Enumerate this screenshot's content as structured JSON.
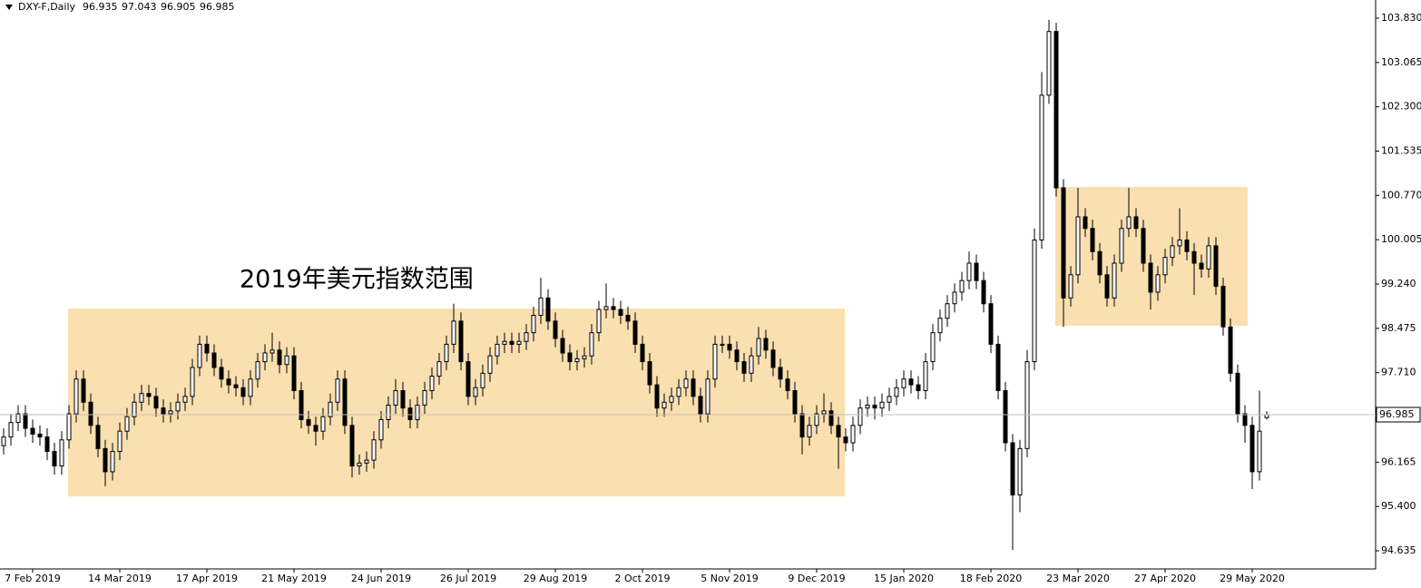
{
  "chart_data": {
    "type": "candlestick",
    "title": "DXY-F,Daily",
    "annotation": "2019年美元指数范围",
    "ylim": [
      94.322,
      104.143
    ],
    "yticks": [
      94.635,
      {
        "value": 95.4,
        "label": "95.400"
      },
      96.165,
      {
        "value": 97.71,
        "label": "97.710"
      },
      98.475,
      {
        "value": 99.24,
        "label": "99.240"
      },
      100.005,
      {
        "value": 100.77,
        "label": "100.770"
      },
      101.535,
      {
        "value": 102.3,
        "label": "102.300"
      },
      103.065,
      {
        "value": 103.83,
        "label": "103.830"
      }
    ],
    "last_price": 96.985,
    "up_color": "#ffffff",
    "down_color": "#000000",
    "outline_color": "#000000",
    "categories": [
      null,
      null,
      null,
      null,
      "7 Feb 2019",
      null,
      null,
      null,
      null,
      null,
      null,
      null,
      null,
      null,
      null,
      null,
      "14 Mar 2019",
      null,
      null,
      null,
      null,
      null,
      null,
      null,
      null,
      null,
      null,
      null,
      "17 Apr 2019",
      null,
      null,
      null,
      null,
      null,
      null,
      null,
      null,
      null,
      null,
      null,
      "21 May 2019",
      null,
      null,
      null,
      null,
      null,
      null,
      null,
      null,
      null,
      null,
      null,
      "24 Jun 2019",
      null,
      null,
      null,
      null,
      null,
      null,
      null,
      null,
      null,
      null,
      null,
      "26 Jul 2019",
      null,
      null,
      null,
      null,
      null,
      null,
      null,
      null,
      null,
      null,
      null,
      "29 Aug 2019",
      null,
      null,
      null,
      null,
      null,
      null,
      null,
      null,
      null,
      null,
      null,
      "2 Oct 2019",
      null,
      null,
      null,
      null,
      null,
      null,
      null,
      null,
      null,
      null,
      null,
      "5 Nov 2019",
      null,
      null,
      null,
      null,
      null,
      null,
      null,
      null,
      null,
      null,
      null,
      "9 Dec 2019",
      null,
      null,
      null,
      null,
      null,
      null,
      null,
      null,
      null,
      null,
      null,
      "15 Jan 2020",
      null,
      null,
      null,
      null,
      null,
      null,
      null,
      null,
      null,
      null,
      null,
      "18 Feb 2020",
      null,
      null,
      null,
      null,
      null,
      null,
      null,
      null,
      null,
      null,
      null,
      "23 Mar 2020",
      null,
      null,
      null,
      null,
      null,
      null,
      null,
      null,
      null,
      null,
      null,
      "27 Apr 2020",
      null,
      null,
      null,
      null,
      null,
      null,
      null,
      null,
      null,
      null,
      null,
      "29 May 2020",
      null,
      null
    ],
    "candles": [
      [
        96.45,
        96.75,
        96.3,
        96.6
      ],
      [
        96.6,
        97.0,
        96.45,
        96.85
      ],
      [
        96.85,
        97.15,
        96.7,
        97.0
      ],
      [
        97.0,
        97.15,
        96.6,
        96.75
      ],
      [
        96.75,
        96.9,
        96.5,
        96.65
      ],
      [
        96.65,
        96.8,
        96.45,
        96.6
      ],
      [
        96.6,
        96.75,
        96.2,
        96.35
      ],
      [
        96.35,
        96.5,
        95.95,
        96.1
      ],
      [
        96.1,
        96.7,
        95.95,
        96.55
      ],
      [
        96.55,
        97.15,
        96.4,
        97.0
      ],
      [
        97.0,
        97.75,
        96.85,
        97.6
      ],
      [
        97.6,
        97.75,
        97.05,
        97.2
      ],
      [
        97.2,
        97.35,
        96.65,
        96.8
      ],
      [
        96.8,
        96.95,
        96.25,
        96.4
      ],
      [
        96.4,
        96.55,
        95.75,
        96.0
      ],
      [
        96.0,
        96.5,
        95.85,
        96.35
      ],
      [
        96.35,
        96.85,
        96.2,
        96.7
      ],
      [
        96.7,
        97.1,
        96.55,
        96.95
      ],
      [
        96.95,
        97.35,
        96.8,
        97.2
      ],
      [
        97.2,
        97.5,
        97.05,
        97.35
      ],
      [
        97.35,
        97.5,
        97.15,
        97.3
      ],
      [
        97.3,
        97.45,
        96.95,
        97.1
      ],
      [
        97.1,
        97.25,
        96.85,
        97.0
      ],
      [
        97.0,
        97.2,
        96.85,
        97.05
      ],
      [
        97.05,
        97.35,
        96.9,
        97.2
      ],
      [
        97.2,
        97.45,
        97.05,
        97.3
      ],
      [
        97.3,
        97.95,
        97.15,
        97.8
      ],
      [
        97.8,
        98.35,
        97.65,
        98.2
      ],
      [
        98.2,
        98.35,
        97.9,
        98.05
      ],
      [
        98.05,
        98.2,
        97.65,
        97.8
      ],
      [
        97.8,
        97.95,
        97.45,
        97.6
      ],
      [
        97.6,
        97.75,
        97.35,
        97.5
      ],
      [
        97.5,
        97.65,
        97.3,
        97.45
      ],
      [
        97.45,
        97.6,
        97.15,
        97.3
      ],
      [
        97.3,
        97.75,
        97.15,
        97.6
      ],
      [
        97.6,
        98.05,
        97.45,
        97.9
      ],
      [
        97.9,
        98.2,
        97.75,
        98.05
      ],
      [
        98.05,
        98.4,
        97.9,
        98.1
      ],
      [
        98.1,
        98.25,
        97.7,
        97.85
      ],
      [
        97.85,
        98.15,
        97.7,
        98.0
      ],
      [
        98.0,
        98.15,
        97.25,
        97.4
      ],
      [
        97.4,
        97.55,
        96.75,
        96.9
      ],
      [
        96.9,
        97.05,
        96.65,
        96.8
      ],
      [
        96.8,
        96.95,
        96.45,
        96.7
      ],
      [
        96.7,
        97.1,
        96.55,
        96.95
      ],
      [
        96.95,
        97.35,
        96.8,
        97.2
      ],
      [
        97.2,
        97.75,
        97.05,
        97.6
      ],
      [
        97.6,
        97.75,
        96.65,
        96.8
      ],
      [
        96.8,
        96.95,
        95.9,
        96.1
      ],
      [
        96.1,
        96.3,
        95.95,
        96.15
      ],
      [
        96.15,
        96.35,
        96.0,
        96.2
      ],
      [
        96.2,
        96.7,
        96.05,
        96.55
      ],
      [
        96.55,
        97.05,
        96.4,
        96.9
      ],
      [
        96.9,
        97.3,
        96.75,
        97.15
      ],
      [
        97.15,
        97.6,
        97.0,
        97.4
      ],
      [
        97.4,
        97.55,
        96.95,
        97.1
      ],
      [
        97.1,
        97.25,
        96.75,
        96.9
      ],
      [
        96.9,
        97.3,
        96.75,
        97.15
      ],
      [
        97.15,
        97.55,
        97.0,
        97.4
      ],
      [
        97.4,
        97.8,
        97.25,
        97.65
      ],
      [
        97.65,
        98.05,
        97.5,
        97.9
      ],
      [
        97.9,
        98.35,
        97.75,
        98.2
      ],
      [
        98.2,
        98.9,
        98.05,
        98.6
      ],
      [
        98.6,
        98.75,
        97.75,
        97.9
      ],
      [
        97.9,
        98.05,
        97.15,
        97.3
      ],
      [
        97.3,
        97.6,
        97.15,
        97.45
      ],
      [
        97.45,
        97.85,
        97.3,
        97.7
      ],
      [
        97.7,
        98.15,
        97.55,
        98.0
      ],
      [
        98.0,
        98.35,
        97.85,
        98.2
      ],
      [
        98.2,
        98.4,
        98.05,
        98.25
      ],
      [
        98.25,
        98.4,
        98.05,
        98.2
      ],
      [
        98.2,
        98.4,
        98.05,
        98.25
      ],
      [
        98.25,
        98.55,
        98.1,
        98.4
      ],
      [
        98.4,
        98.85,
        98.25,
        98.7
      ],
      [
        98.7,
        99.35,
        98.55,
        99.0
      ],
      [
        99.0,
        99.15,
        98.45,
        98.6
      ],
      [
        98.6,
        98.75,
        98.15,
        98.3
      ],
      [
        98.3,
        98.45,
        97.9,
        98.05
      ],
      [
        98.05,
        98.2,
        97.75,
        97.9
      ],
      [
        97.9,
        98.1,
        97.75,
        97.95
      ],
      [
        97.95,
        98.15,
        97.8,
        98.0
      ],
      [
        98.0,
        98.55,
        97.85,
        98.4
      ],
      [
        98.4,
        98.95,
        98.25,
        98.8
      ],
      [
        98.8,
        99.25,
        98.65,
        98.85
      ],
      [
        98.85,
        99.0,
        98.65,
        98.8
      ],
      [
        98.8,
        98.95,
        98.55,
        98.7
      ],
      [
        98.7,
        98.85,
        98.45,
        98.6
      ],
      [
        98.6,
        98.75,
        98.05,
        98.2
      ],
      [
        98.2,
        98.35,
        97.75,
        97.9
      ],
      [
        97.9,
        98.05,
        97.35,
        97.5
      ],
      [
        97.5,
        97.65,
        96.95,
        97.1
      ],
      [
        97.1,
        97.35,
        96.95,
        97.2
      ],
      [
        97.2,
        97.45,
        97.05,
        97.3
      ],
      [
        97.3,
        97.6,
        97.15,
        97.45
      ],
      [
        97.45,
        97.75,
        97.3,
        97.6
      ],
      [
        97.6,
        97.75,
        97.15,
        97.3
      ],
      [
        97.3,
        97.45,
        96.85,
        97.0
      ],
      [
        97.0,
        97.75,
        96.85,
        97.6
      ],
      [
        97.6,
        98.35,
        97.45,
        98.2
      ],
      [
        98.2,
        98.35,
        98.05,
        98.2
      ],
      [
        98.2,
        98.35,
        97.95,
        98.1
      ],
      [
        98.1,
        98.25,
        97.75,
        97.9
      ],
      [
        97.9,
        98.05,
        97.55,
        97.7
      ],
      [
        97.7,
        98.15,
        97.55,
        98.0
      ],
      [
        98.0,
        98.5,
        97.85,
        98.3
      ],
      [
        98.3,
        98.45,
        97.95,
        98.1
      ],
      [
        98.1,
        98.25,
        97.65,
        97.8
      ],
      [
        97.8,
        97.95,
        97.45,
        97.6
      ],
      [
        97.6,
        97.75,
        97.25,
        97.4
      ],
      [
        97.4,
        97.55,
        96.85,
        97.0
      ],
      [
        97.0,
        97.15,
        96.3,
        96.6
      ],
      [
        96.6,
        96.95,
        96.45,
        96.8
      ],
      [
        96.8,
        97.15,
        96.65,
        97.0
      ],
      [
        97.0,
        97.35,
        96.85,
        97.05
      ],
      [
        97.05,
        97.2,
        96.65,
        96.8
      ],
      [
        96.8,
        96.95,
        96.05,
        96.6
      ],
      [
        96.6,
        96.75,
        96.35,
        96.5
      ],
      [
        96.5,
        96.95,
        96.35,
        96.8
      ],
      [
        96.8,
        97.25,
        96.65,
        97.1
      ],
      [
        97.1,
        97.3,
        96.95,
        97.15
      ],
      [
        97.15,
        97.3,
        96.9,
        97.1
      ],
      [
        97.1,
        97.35,
        96.95,
        97.2
      ],
      [
        97.2,
        97.45,
        97.05,
        97.3
      ],
      [
        97.3,
        97.6,
        97.15,
        97.45
      ],
      [
        97.45,
        97.75,
        97.3,
        97.6
      ],
      [
        97.6,
        97.75,
        97.35,
        97.5
      ],
      [
        97.5,
        97.65,
        97.25,
        97.4
      ],
      [
        97.4,
        98.05,
        97.25,
        97.9
      ],
      [
        97.9,
        98.55,
        97.75,
        98.4
      ],
      [
        98.4,
        98.8,
        98.25,
        98.65
      ],
      [
        98.65,
        99.05,
        98.5,
        98.9
      ],
      [
        98.9,
        99.25,
        98.75,
        99.1
      ],
      [
        99.1,
        99.45,
        98.95,
        99.3
      ],
      [
        99.3,
        99.8,
        99.15,
        99.6
      ],
      [
        99.6,
        99.75,
        99.15,
        99.3
      ],
      [
        99.3,
        99.45,
        98.75,
        98.9
      ],
      [
        98.9,
        99.05,
        98.05,
        98.2
      ],
      [
        98.2,
        98.35,
        97.25,
        97.4
      ],
      [
        97.4,
        97.55,
        96.35,
        96.5
      ],
      [
        96.5,
        96.65,
        94.65,
        95.6
      ],
      [
        95.6,
        96.55,
        95.3,
        96.4
      ],
      [
        96.4,
        98.1,
        96.25,
        97.9
      ],
      [
        97.9,
        100.2,
        97.75,
        100.0
      ],
      [
        100.0,
        102.9,
        99.85,
        102.5
      ],
      [
        102.5,
        103.8,
        102.35,
        103.6
      ],
      [
        103.6,
        103.75,
        100.75,
        100.9
      ],
      [
        100.9,
        101.05,
        98.5,
        99.0
      ],
      [
        99.0,
        99.55,
        98.85,
        99.4
      ],
      [
        99.4,
        100.9,
        99.25,
        100.4
      ],
      [
        100.4,
        100.55,
        100.05,
        100.2
      ],
      [
        100.2,
        100.35,
        99.65,
        99.8
      ],
      [
        99.8,
        99.95,
        99.25,
        99.4
      ],
      [
        99.4,
        99.55,
        98.85,
        99.0
      ],
      [
        99.0,
        99.75,
        98.85,
        99.6
      ],
      [
        99.6,
        100.35,
        99.45,
        100.2
      ],
      [
        100.2,
        100.9,
        100.05,
        100.4
      ],
      [
        100.4,
        100.55,
        100.05,
        100.2
      ],
      [
        100.2,
        100.35,
        99.45,
        99.6
      ],
      [
        99.6,
        99.75,
        98.8,
        99.1
      ],
      [
        99.1,
        99.55,
        98.95,
        99.4
      ],
      [
        99.4,
        99.85,
        99.25,
        99.7
      ],
      [
        99.7,
        100.05,
        99.55,
        99.9
      ],
      [
        99.9,
        100.55,
        99.75,
        100.0
      ],
      [
        100.0,
        100.15,
        99.65,
        99.8
      ],
      [
        99.8,
        99.95,
        99.05,
        99.6
      ],
      [
        99.6,
        99.75,
        99.35,
        99.5
      ],
      [
        99.5,
        100.05,
        99.35,
        99.9
      ],
      [
        99.9,
        100.05,
        99.05,
        99.2
      ],
      [
        99.2,
        99.35,
        98.35,
        98.5
      ],
      [
        98.5,
        98.65,
        97.55,
        97.7
      ],
      [
        97.7,
        97.85,
        96.85,
        97.0
      ],
      [
        97.0,
        97.15,
        96.5,
        96.8
      ],
      [
        96.8,
        96.95,
        95.7,
        96.0
      ],
      [
        96.0,
        97.4,
        95.85,
        96.7
      ],
      [
        96.935,
        97.043,
        96.905,
        96.985
      ]
    ]
  }
}
